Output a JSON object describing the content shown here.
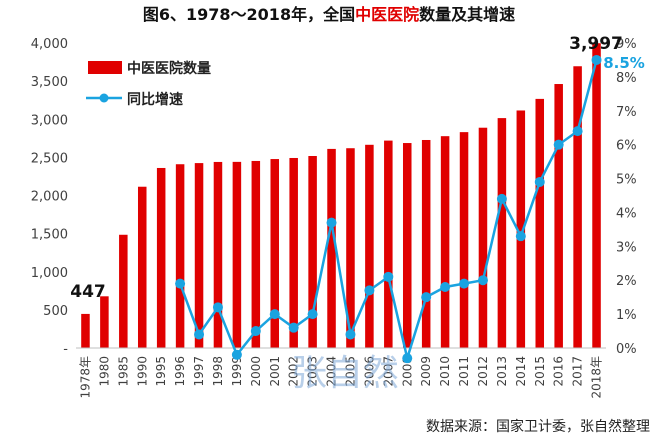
{
  "chart_data": {
    "type": "bar",
    "title_parts": [
      "图6、1978～2018年，全国",
      "中医医院",
      "数量及其增速"
    ],
    "categories": [
      "1978年",
      "1980",
      "1985",
      "1990",
      "1995",
      "1996",
      "1997",
      "1998",
      "1999",
      "2000",
      "2001",
      "2002",
      "2003",
      "2004",
      "2005",
      "2006",
      "2007",
      "2008",
      "2009",
      "2010",
      "2011",
      "2012",
      "2013",
      "2014",
      "2015",
      "2016",
      "2017",
      "2018年"
    ],
    "series": [
      {
        "name": "中医医院数量",
        "type": "bar",
        "axis": "left",
        "color": "#e00000",
        "values": [
          447,
          678,
          1485,
          2115,
          2361,
          2410,
          2425,
          2440,
          2441,
          2453,
          2478,
          2492,
          2518,
          2611,
          2620,
          2665,
          2720,
          2688,
          2728,
          2778,
          2831,
          2889,
          3015,
          3115,
          3267,
          3462,
          3695,
          3997
        ]
      },
      {
        "name": "同比增速",
        "type": "line",
        "axis": "right",
        "color": "#1aa3e0",
        "values": [
          null,
          null,
          null,
          null,
          null,
          1.9,
          0.4,
          1.2,
          -0.2,
          0.5,
          1.0,
          0.6,
          1.0,
          3.7,
          0.4,
          1.7,
          2.1,
          -0.3,
          1.5,
          1.8,
          1.9,
          2.0,
          4.4,
          3.3,
          4.9,
          6.0,
          6.4,
          8.5
        ]
      }
    ],
    "y_left": {
      "min": 0,
      "max": 4000,
      "ticks": [
        "-",
        "500",
        "1,000",
        "1,500",
        "2,000",
        "2,500",
        "3,000",
        "3,500",
        "4,000"
      ]
    },
    "y_right": {
      "min": 0,
      "max": 9,
      "ticks": [
        "0%",
        "1%",
        "2%",
        "3%",
        "4%",
        "5%",
        "6%",
        "7%",
        "8%",
        "9%"
      ]
    },
    "annotations": {
      "first_bar": "447",
      "last_bar": "3,997",
      "last_rate": "8.5%"
    }
  },
  "watermark": "张自然",
  "source_text": "数据来源：国家卫计委，张自然整理"
}
